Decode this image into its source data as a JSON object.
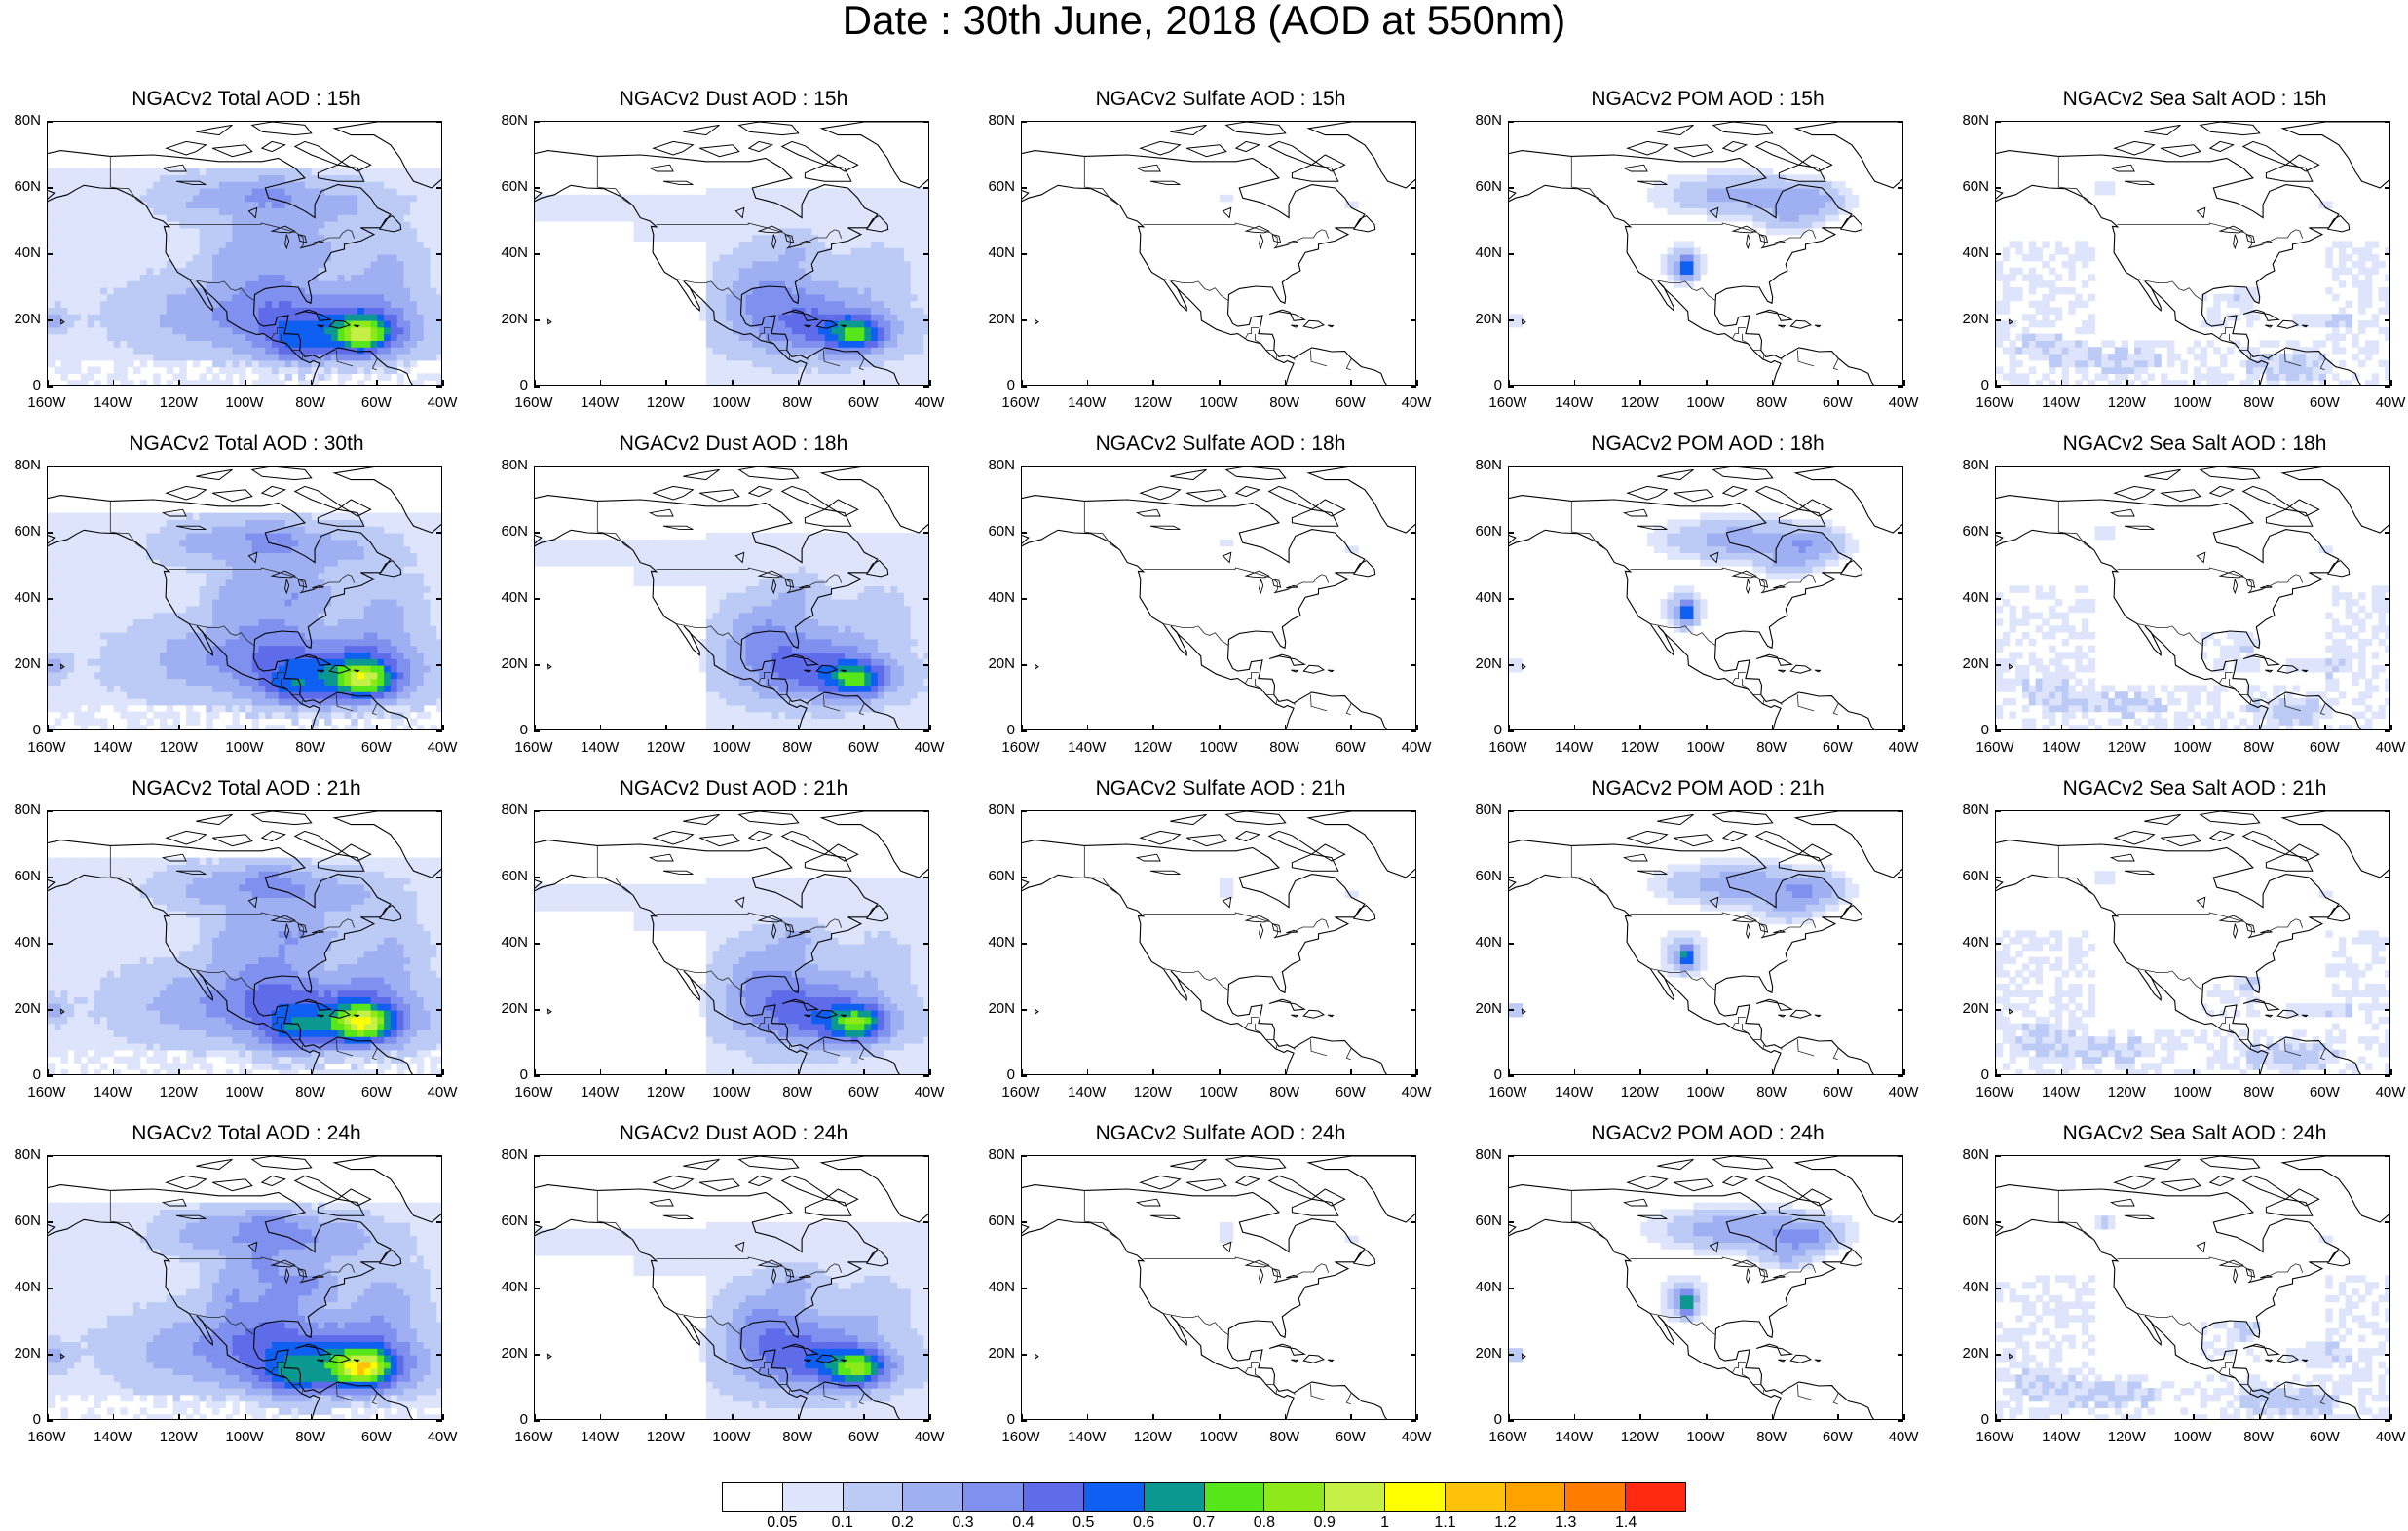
{
  "title": "Date : 30th June, 2018 (AOD at 550nm)",
  "y_ticks": [
    "80N",
    "60N",
    "40N",
    "20N",
    "0"
  ],
  "x_ticks": [
    "160W",
    "140W",
    "120W",
    "100W",
    "80W",
    "60W",
    "40W"
  ],
  "panels": [
    {
      "title": "NGACv2 Total AOD : 15h",
      "variable": "total",
      "intensity": 1.0
    },
    {
      "title": "NGACv2 Dust AOD : 15h",
      "variable": "dust",
      "intensity": 1.0
    },
    {
      "title": "NGACv2 Sulfate AOD : 15h",
      "variable": "sulfate",
      "intensity": 1.0
    },
    {
      "title": "NGACv2 POM AOD : 15h",
      "variable": "pom",
      "intensity": 1.0
    },
    {
      "title": "NGACv2 Sea Salt AOD : 15h",
      "variable": "seasalt",
      "intensity": 1.0
    },
    {
      "title": "NGACv2 Total AOD : 30th",
      "variable": "total",
      "intensity": 1.05
    },
    {
      "title": "NGACv2 Dust AOD : 18h",
      "variable": "dust",
      "intensity": 1.05
    },
    {
      "title": "NGACv2 Sulfate AOD : 18h",
      "variable": "sulfate",
      "intensity": 1.05
    },
    {
      "title": "NGACv2 POM AOD : 18h",
      "variable": "pom",
      "intensity": 1.05
    },
    {
      "title": "NGACv2 Sea Salt AOD : 18h",
      "variable": "seasalt",
      "intensity": 1.05
    },
    {
      "title": "NGACv2 Total AOD : 21h",
      "variable": "total",
      "intensity": 1.1
    },
    {
      "title": "NGACv2 Dust AOD : 21h",
      "variable": "dust",
      "intensity": 1.1
    },
    {
      "title": "NGACv2 Sulfate AOD : 21h",
      "variable": "sulfate",
      "intensity": 1.1
    },
    {
      "title": "NGACv2 POM AOD : 21h",
      "variable": "pom",
      "intensity": 1.1
    },
    {
      "title": "NGACv2 Sea Salt AOD : 21h",
      "variable": "seasalt",
      "intensity": 1.1
    },
    {
      "title": "NGACv2 Total AOD : 24h",
      "variable": "total",
      "intensity": 1.2
    },
    {
      "title": "NGACv2 Dust AOD : 24h",
      "variable": "dust",
      "intensity": 1.15
    },
    {
      "title": "NGACv2 Sulfate AOD : 24h",
      "variable": "sulfate",
      "intensity": 1.15
    },
    {
      "title": "NGACv2 POM AOD : 24h",
      "variable": "pom",
      "intensity": 1.2
    },
    {
      "title": "NGACv2 Sea Salt  AOD : 24h",
      "variable": "seasalt",
      "intensity": 1.15
    }
  ],
  "colorbar": {
    "labels": [
      "0.05",
      "0.1",
      "0.2",
      "0.3",
      "0.4",
      "0.5",
      "0.6",
      "0.7",
      "0.8",
      "0.9",
      "1",
      "1.1",
      "1.2",
      "1.3",
      "1.4"
    ],
    "colors": [
      "#ffffff",
      "#dde4fb",
      "#bccaf6",
      "#9eb0f2",
      "#7f90ee",
      "#5f6ce9",
      "#0f5ff2",
      "#0a9890",
      "#57e619",
      "#8ee91a",
      "#c6f046",
      "#ffff00",
      "#ffc20a",
      "#ffa200",
      "#fe7c00",
      "#ff2a10"
    ]
  }
}
